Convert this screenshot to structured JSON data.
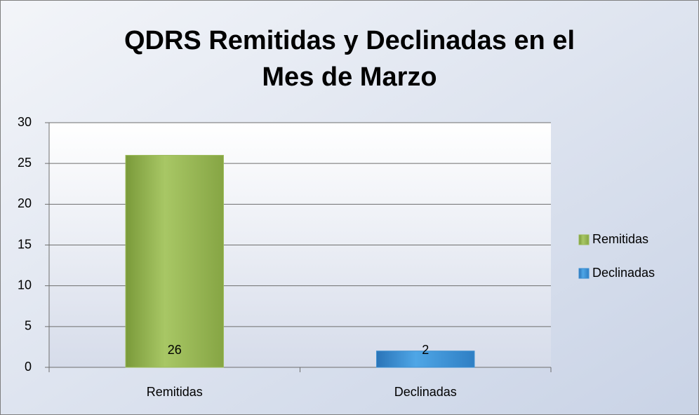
{
  "chart_data": {
    "type": "bar",
    "title": "QDRS Remitidas y Declinadas en el Mes de Marzo",
    "categories": [
      "Remitidas",
      "Declinadas"
    ],
    "series": [
      {
        "name": "Remitidas",
        "color": "#9bbb59",
        "values": [
          26,
          null
        ]
      },
      {
        "name": "Declinadas",
        "color": "#3d8fd1",
        "values": [
          null,
          2
        ]
      }
    ],
    "ylim": [
      0,
      30
    ],
    "yticks": [
      0,
      5,
      10,
      15,
      20,
      25,
      30
    ],
    "grid": true,
    "legend": "right"
  }
}
